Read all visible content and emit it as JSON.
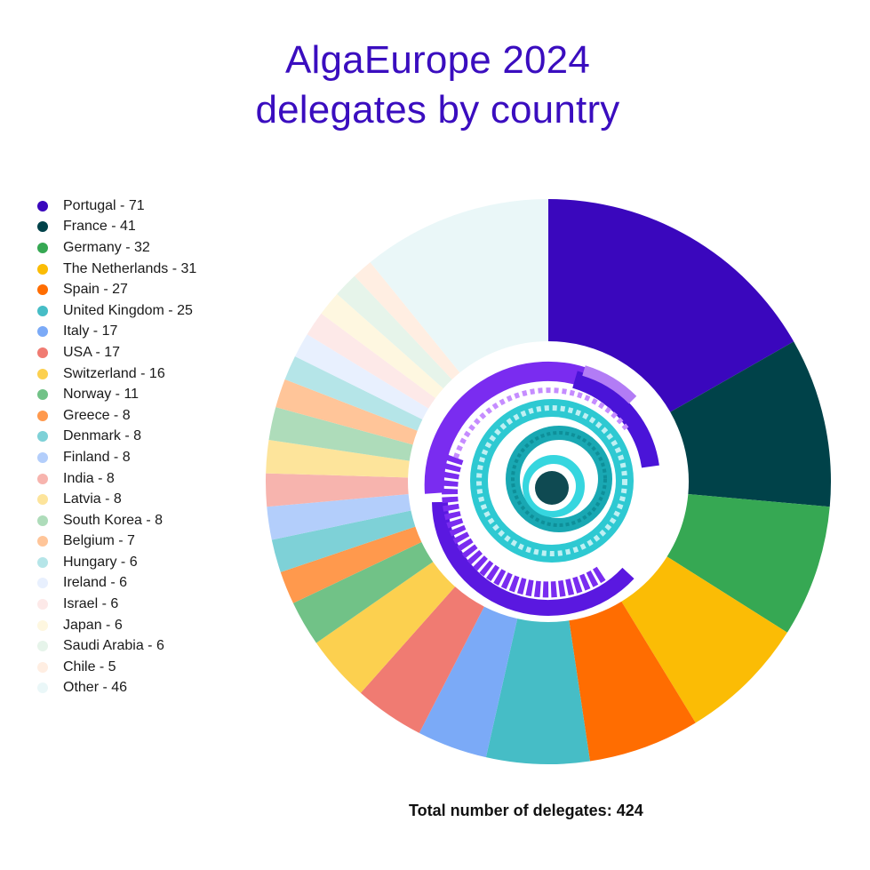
{
  "title": {
    "line1": "AlgaEurope 2024",
    "line2": "delegates by country",
    "color": "#3a0dbf"
  },
  "footer": {
    "total_label": "Total number of delegates: 424"
  },
  "center_logo": {
    "icon": "spiral-meander-logo-icon",
    "colors": [
      "#7a2cf0",
      "#4a14d8",
      "#c58cff",
      "#2ec9d2",
      "#19a8b3",
      "#0f4a52"
    ]
  },
  "legend": [
    {
      "label": "Portugal - 71",
      "color": "#3a07bd"
    },
    {
      "label": "France - 41",
      "color": "#004249"
    },
    {
      "label": "Germany - 32",
      "color": "#36a853"
    },
    {
      "label": "The Netherlands - 31",
      "color": "#fbbc05"
    },
    {
      "label": "Spain - 27",
      "color": "#ff6d01"
    },
    {
      "label": "United Kingdom - 25",
      "color": "#46bdc6"
    },
    {
      "label": "Italy - 17",
      "color": "#7baaf7"
    },
    {
      "label": "USA - 17",
      "color": "#f07b72"
    },
    {
      "label": "Switzerland - 16",
      "color": "#fcd04f"
    },
    {
      "label": "Norway - 11",
      "color": "#71c287"
    },
    {
      "label": "Greece - 8",
      "color": "#ff994d"
    },
    {
      "label": "Denmark - 8",
      "color": "#7ed1d7"
    },
    {
      "label": "Finland - 8",
      "color": "#b3cefb"
    },
    {
      "label": "India - 8",
      "color": "#f7b4ae"
    },
    {
      "label": "Latvia - 8",
      "color": "#fde49b"
    },
    {
      "label": "South Korea - 8",
      "color": "#aedcba"
    },
    {
      "label": "Belgium - 7",
      "color": "#ffc599"
    },
    {
      "label": "Hungary - 6",
      "color": "#b5e5e8"
    },
    {
      "label": "Ireland - 6",
      "color": "#e8f0fe"
    },
    {
      "label": "Israel - 6",
      "color": "#fde9e8"
    },
    {
      "label": "Japan - 6",
      "color": "#fef7e0"
    },
    {
      "label": "Saudi Arabia - 6",
      "color": "#e6f4ea"
    },
    {
      "label": "Chile - 5",
      "color": "#ffeee2"
    },
    {
      "label": "Other - 46",
      "color": "#eaf7f8"
    }
  ],
  "chart_data": {
    "type": "pie",
    "variant": "donut",
    "title": "AlgaEurope 2024 delegates by country",
    "categories": [
      "Portugal",
      "France",
      "Germany",
      "The Netherlands",
      "Spain",
      "United Kingdom",
      "Italy",
      "USA",
      "Switzerland",
      "Norway",
      "Greece",
      "Denmark",
      "Finland",
      "India",
      "Latvia",
      "South Korea",
      "Belgium",
      "Hungary",
      "Ireland",
      "Israel",
      "Japan",
      "Saudi Arabia",
      "Chile",
      "Other"
    ],
    "values": [
      71,
      41,
      32,
      31,
      27,
      25,
      17,
      17,
      16,
      11,
      8,
      8,
      8,
      8,
      8,
      8,
      7,
      6,
      6,
      6,
      6,
      6,
      5,
      46
    ],
    "colors": [
      "#3a07bd",
      "#004249",
      "#36a853",
      "#fbbc05",
      "#ff6d01",
      "#46bdc6",
      "#7baaf7",
      "#f07b72",
      "#fcd04f",
      "#71c287",
      "#ff994d",
      "#7ed1d7",
      "#b3cefb",
      "#f7b4ae",
      "#fde49b",
      "#aedcba",
      "#ffc599",
      "#b5e5e8",
      "#e8f0fe",
      "#fde9e8",
      "#fef7e0",
      "#e6f4ea",
      "#ffeee2",
      "#eaf7f8"
    ],
    "total": 424,
    "annotation": "Total number of delegates: 424",
    "legend_position": "left",
    "start_angle": "12 o'clock, clockwise"
  }
}
